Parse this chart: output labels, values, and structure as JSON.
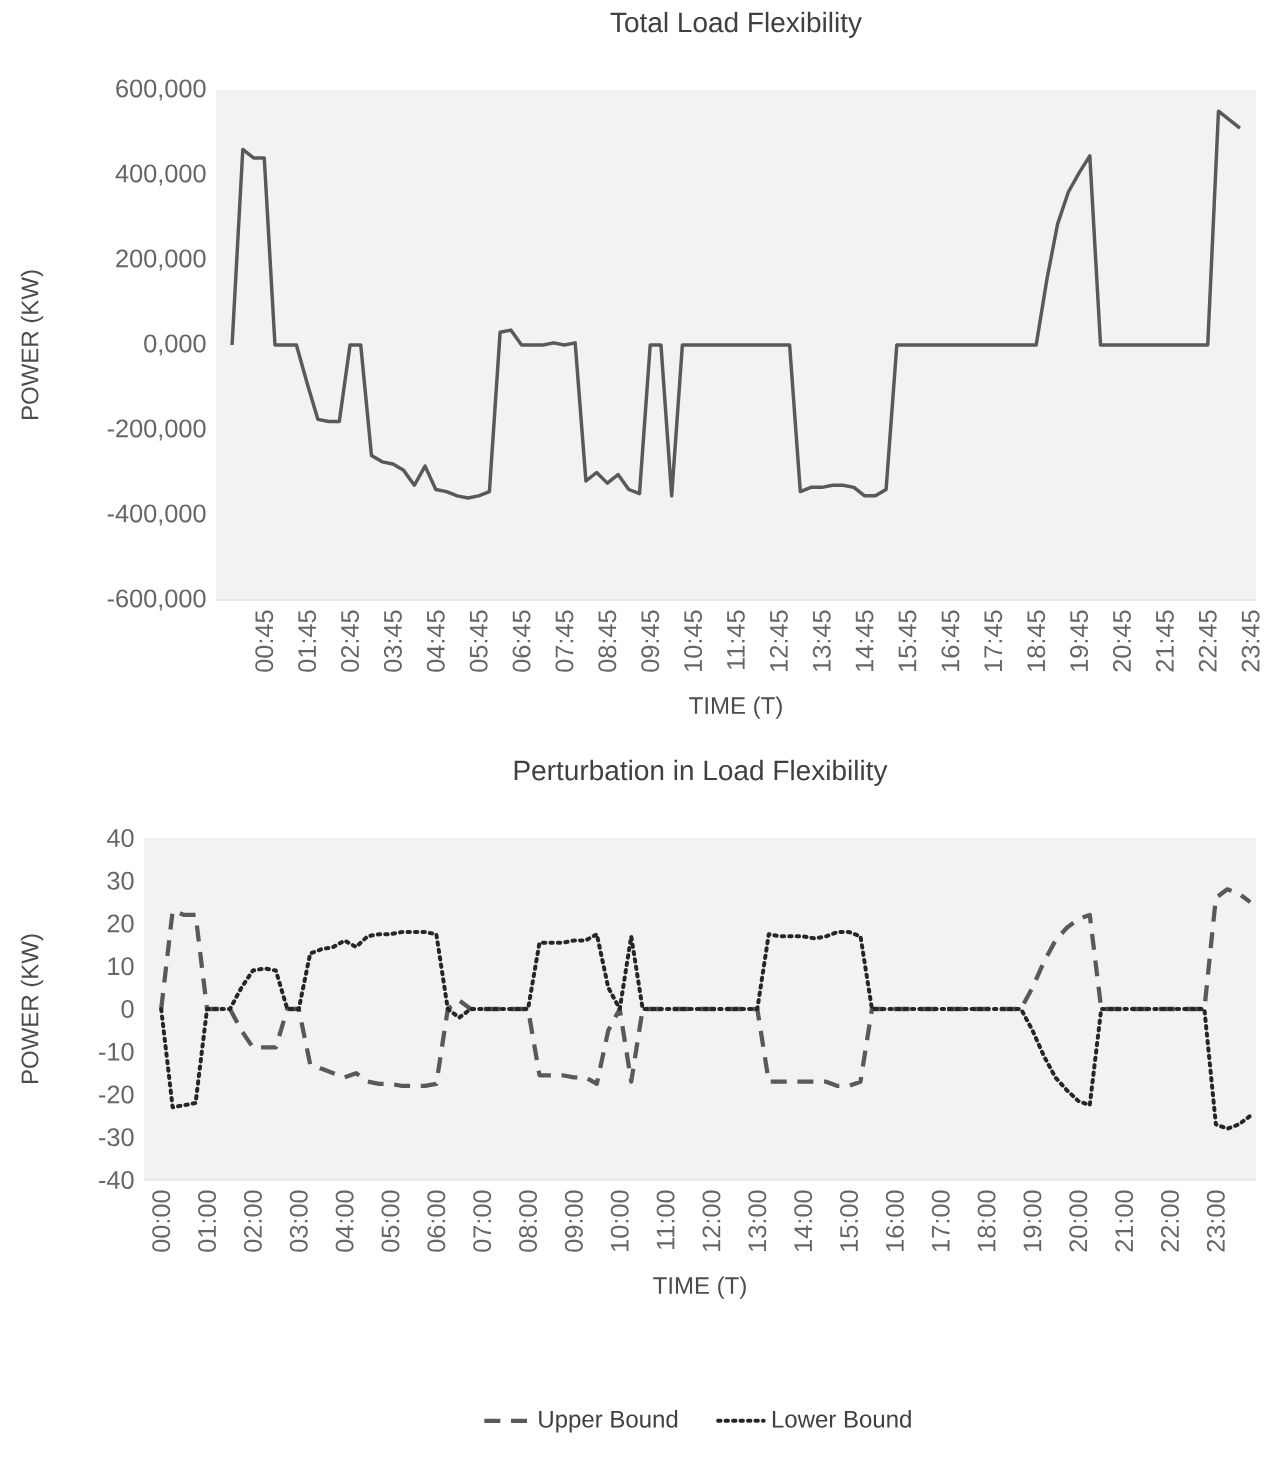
{
  "chart_data": [
    {
      "type": "line",
      "title": "Total Load Flexibility",
      "xlabel": "TIME (T)",
      "ylabel": "POWER (KW)",
      "categories": [
        null,
        null,
        null,
        "00:45",
        null,
        null,
        null,
        "01:45",
        null,
        null,
        null,
        "02:45",
        null,
        null,
        null,
        "03:45",
        null,
        null,
        null,
        "04:45",
        null,
        null,
        null,
        "05:45",
        null,
        null,
        null,
        "06:45",
        null,
        null,
        null,
        "07:45",
        null,
        null,
        null,
        "08:45",
        null,
        null,
        null,
        "09:45",
        null,
        null,
        null,
        "10:45",
        null,
        null,
        null,
        "11:45",
        null,
        null,
        null,
        "12:45",
        null,
        null,
        null,
        "13:45",
        null,
        null,
        null,
        "14:45",
        null,
        null,
        null,
        "15:45",
        null,
        null,
        null,
        "16:45",
        null,
        null,
        null,
        "17:45",
        null,
        null,
        null,
        "18:45",
        null,
        null,
        null,
        "19:45",
        null,
        null,
        null,
        "20:45",
        null,
        null,
        null,
        "21:45",
        null,
        null,
        null,
        "22:45",
        null,
        null,
        null,
        "23:45"
      ],
      "series": [
        {
          "color": "#595959",
          "line_style": "solid",
          "values": [
            0,
            460000,
            440000,
            440000,
            0,
            0,
            0,
            -90000,
            -175000,
            -180000,
            -180000,
            0,
            0,
            -260000,
            -275000,
            -280000,
            -295000,
            -330000,
            -285000,
            -340000,
            -345000,
            -355000,
            -360000,
            -355000,
            -345000,
            30000,
            35000,
            0,
            0,
            0,
            5000,
            0,
            5000,
            -320000,
            -300000,
            -325000,
            -305000,
            -340000,
            -350000,
            0,
            0,
            -355000,
            0,
            0,
            0,
            0,
            0,
            0,
            0,
            0,
            0,
            0,
            0,
            -345000,
            -335000,
            -335000,
            -330000,
            -330000,
            -335000,
            -355000,
            -355000,
            -340000,
            0,
            0,
            0,
            0,
            0,
            0,
            0,
            0,
            0,
            0,
            0,
            0,
            0,
            0,
            155000,
            285000,
            360000,
            405000,
            445000,
            0,
            0,
            0,
            0,
            0,
            0,
            0,
            0,
            0,
            0,
            0,
            550000,
            530000,
            510000,
            null
          ]
        }
      ],
      "ylim": [
        -600000,
        600000
      ],
      "yticks": [
        {
          "value": -600000,
          "label": "-600,000"
        },
        {
          "value": -400000,
          "label": "-400,000"
        },
        {
          "value": -200000,
          "label": "-200,000"
        },
        {
          "value": 0,
          "label": "0,000"
        },
        {
          "value": 200000,
          "label": "200,000"
        },
        {
          "value": 400000,
          "label": "400,000"
        },
        {
          "value": 600000,
          "label": "600,000"
        }
      ]
    },
    {
      "type": "line",
      "title": "Perturbation in Load Flexibility",
      "xlabel": "TIME (T)",
      "ylabel": "POWER (KW)",
      "legend": "bottom",
      "categories": [
        "00:00",
        null,
        null,
        null,
        "01:00",
        null,
        null,
        null,
        "02:00",
        null,
        null,
        null,
        "03:00",
        null,
        null,
        null,
        "04:00",
        null,
        null,
        null,
        "05:00",
        null,
        null,
        null,
        "06:00",
        null,
        null,
        null,
        "07:00",
        null,
        null,
        null,
        "08:00",
        null,
        null,
        null,
        "09:00",
        null,
        null,
        null,
        "10:00",
        null,
        null,
        null,
        "11:00",
        null,
        null,
        null,
        "12:00",
        null,
        null,
        null,
        "13:00",
        null,
        null,
        null,
        "14:00",
        null,
        null,
        null,
        "15:00",
        null,
        null,
        null,
        "16:00",
        null,
        null,
        null,
        "17:00",
        null,
        null,
        null,
        "18:00",
        null,
        null,
        null,
        "19:00",
        null,
        null,
        null,
        "20:00",
        null,
        null,
        null,
        "21:00",
        null,
        null,
        null,
        "22:00",
        null,
        null,
        null,
        "23:00",
        null,
        null,
        null
      ],
      "series": [
        {
          "name": "Upper Bound",
          "color": "#595959",
          "line_style": "dashed",
          "values": [
            0,
            23,
            22,
            22,
            0,
            0,
            0,
            -5,
            -9,
            -9,
            -9,
            0,
            0,
            -13,
            -14,
            -15,
            -16,
            -15,
            -17,
            -17.5,
            -17.5,
            -18,
            -18,
            -18,
            -17.5,
            0,
            2,
            0,
            0,
            0,
            0,
            0,
            0,
            -15.5,
            -15.5,
            -15.5,
            -16,
            -16,
            -17.5,
            -5,
            0,
            -17,
            0,
            0,
            0,
            0,
            0,
            0,
            0,
            0,
            0,
            0,
            0,
            -17,
            -17,
            -17,
            -17,
            -17,
            -17,
            -18,
            -18,
            -17,
            0,
            0,
            0,
            0,
            0,
            0,
            0,
            0,
            0,
            0,
            0,
            0,
            0,
            0,
            5,
            11,
            16,
            19,
            21,
            22,
            0,
            0,
            0,
            0,
            0,
            0,
            0,
            0,
            0,
            0,
            26,
            28,
            27,
            25
          ]
        },
        {
          "name": "Lower Bound",
          "color": "#262626",
          "line_style": "dotted",
          "values": [
            0,
            -23,
            -22.5,
            -22,
            0,
            0,
            0,
            5,
            9,
            9.5,
            9,
            0,
            0,
            13,
            14,
            14.5,
            16,
            14.5,
            17,
            17.5,
            17.5,
            18,
            18,
            18,
            17.5,
            0,
            -2,
            0,
            0,
            0,
            0,
            0,
            0,
            15.5,
            15.5,
            15.5,
            16,
            16,
            17.5,
            5,
            0,
            17,
            0,
            0,
            0,
            0,
            0,
            0,
            0,
            0,
            0,
            0,
            0,
            17.5,
            17,
            17,
            17,
            16.5,
            17,
            18,
            18,
            17,
            0,
            0,
            0,
            0,
            0,
            0,
            0,
            0,
            0,
            0,
            0,
            0,
            0,
            0,
            -5,
            -11,
            -16,
            -19,
            -21.5,
            -22.5,
            0,
            0,
            0,
            0,
            0,
            0,
            0,
            0,
            0,
            0,
            -27,
            -28,
            -27,
            -25
          ]
        }
      ],
      "ylim": [
        -40,
        40
      ],
      "yticks": [
        -40,
        -30,
        -20,
        -10,
        0,
        10,
        20,
        30,
        40
      ]
    }
  ]
}
